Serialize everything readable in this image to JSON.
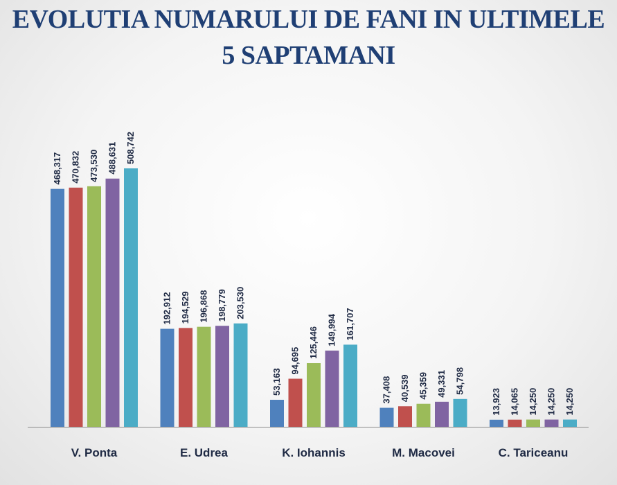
{
  "title_lines": [
    "EVOLUTIA NUMARULUI DE FANI IN ULTIMELE",
    "5 SAPTAMANI"
  ],
  "colors": [
    "#4f81bd",
    "#c0504d",
    "#9bbb59",
    "#8064a2",
    "#4bacc6"
  ],
  "chart_data": {
    "type": "bar",
    "title": "EVOLUTIA NUMARULUI DE FANI IN ULTIMELE 5 SAPTAMANI",
    "categories": [
      "V. Ponta",
      "E. Udrea",
      "K. Iohannis",
      "M. Macovei",
      "C. Tariceanu"
    ],
    "series": [
      {
        "values": [
          468317,
          192912,
          53163,
          37408,
          13923
        ]
      },
      {
        "values": [
          470832,
          194529,
          94695,
          40539,
          14065
        ]
      },
      {
        "values": [
          473530,
          196868,
          125446,
          45359,
          14250
        ]
      },
      {
        "values": [
          488631,
          198779,
          149994,
          49331,
          14250
        ]
      },
      {
        "values": [
          508742,
          203530,
          161707,
          54798,
          14250
        ]
      }
    ],
    "value_labels": [
      [
        "468,317",
        "192,912",
        "53,163",
        "37,408",
        "13,923"
      ],
      [
        "470,832",
        "194,529",
        "94,695",
        "40,539",
        "14,065"
      ],
      [
        "473,530",
        "196,868",
        "125,446",
        "45,359",
        "14,250"
      ],
      [
        "488,631",
        "198,779",
        "149,994",
        "49,331",
        "14,250"
      ],
      [
        "508,742",
        "203,530",
        "161,707",
        "54,798",
        "14,250"
      ]
    ],
    "ylim": [
      0,
      508742
    ],
    "grid": false,
    "legend": "none"
  }
}
